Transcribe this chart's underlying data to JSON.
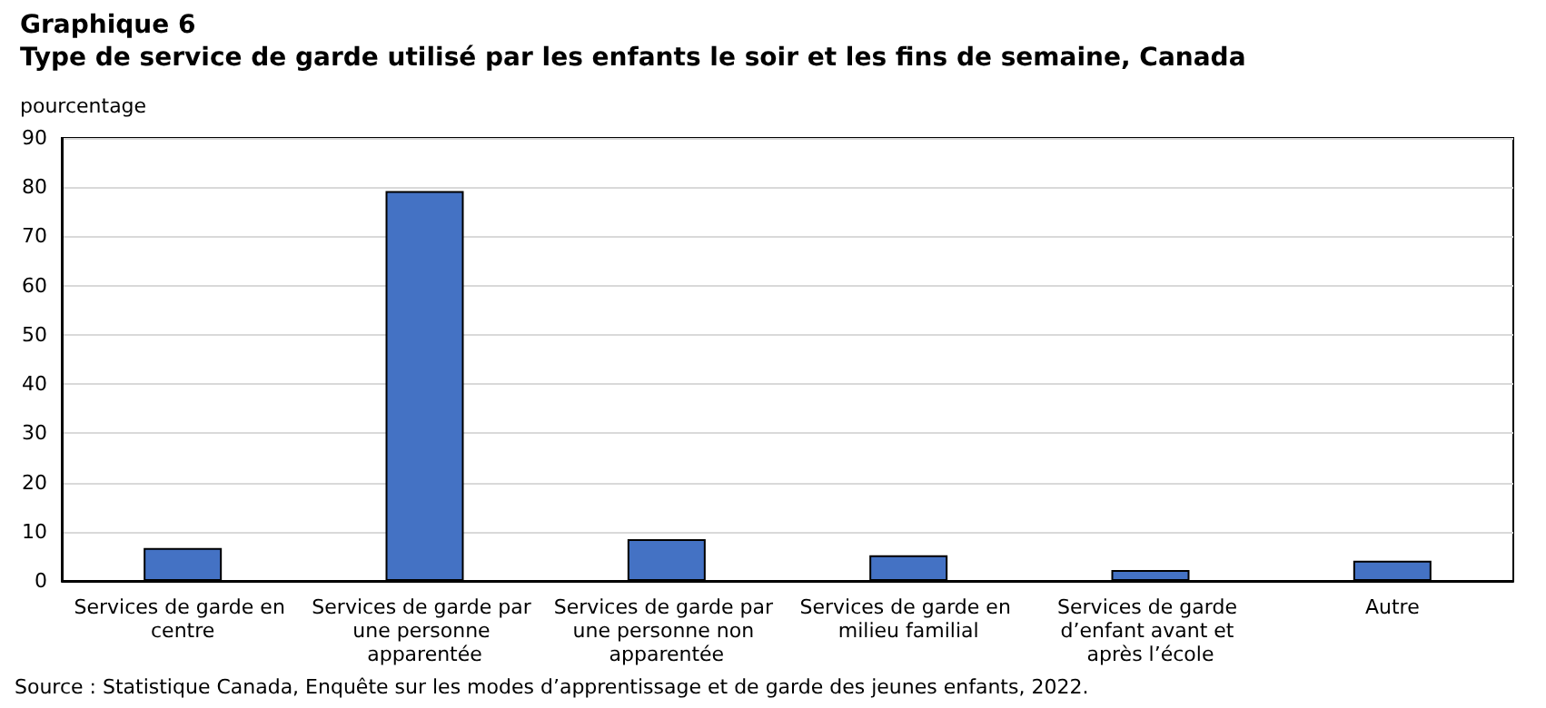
{
  "chart_data": {
    "type": "bar",
    "title": "Graphique 6",
    "subtitle": "Type de service de garde utilisé par les enfants le soir et les fins de semaine, Canada",
    "ylabel": "pourcentage",
    "categories": [
      "Services de garde en centre",
      "Services de garde par une personne apparentée",
      "Services de garde par une personne non apparentée",
      "Services de garde en milieu familial",
      "Services de garde d’enfant avant et après l’école",
      "Autre"
    ],
    "values": [
      6.7,
      79.2,
      8.5,
      5.2,
      2.2,
      4.1
    ],
    "color": "#4472c4",
    "ylim": [
      0,
      90
    ],
    "yticks": [
      0,
      10,
      20,
      30,
      40,
      50,
      60,
      70,
      80,
      90
    ],
    "grid": "y",
    "annotations": [
      "Source : Statistique Canada, Enquête sur les modes d’apprentissage et de garde des jeunes enfants, 2022."
    ]
  }
}
